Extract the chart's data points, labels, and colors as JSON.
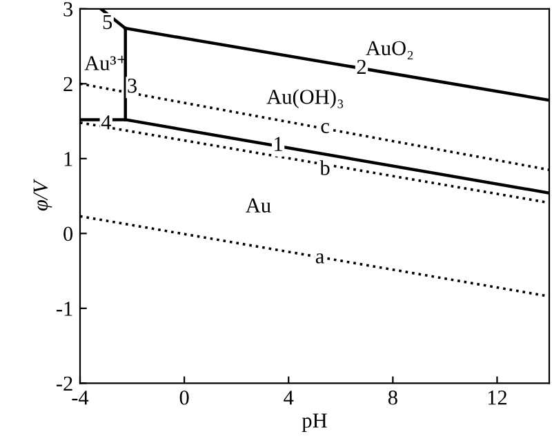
{
  "chart_data": {
    "type": "line",
    "xlabel": "pH",
    "ylabel": "φ/V",
    "xlim": [
      -4,
      14
    ],
    "ylim": [
      -2,
      3
    ],
    "xticks": [
      -4,
      0,
      4,
      8,
      12
    ],
    "yticks": [
      -2,
      -1,
      0,
      1,
      2,
      3
    ],
    "grid": false,
    "legend": false,
    "marker": "none",
    "series": [
      {
        "color": "#000000",
        "line_style": "solid",
        "x": [
          -2.26,
          14
        ],
        "values": [
          2.74,
          1.78
        ]
      },
      {
        "color": "#000000",
        "line_style": "solid",
        "x": [
          -4,
          -2.26,
          14
        ],
        "values": [
          1.52,
          1.52,
          0.54
        ]
      },
      {
        "color": "#000000",
        "line_style": "solid",
        "x": [
          -2.26,
          -2.26
        ],
        "values": [
          1.52,
          2.74
        ]
      },
      {
        "color": "#000000",
        "line_style": "solid",
        "x": [
          -3.2,
          -2.26
        ],
        "values": [
          3,
          2.74
        ]
      },
      {
        "color": "#000000",
        "line_style": "dotted",
        "x": [
          -4,
          14
        ],
        "values": [
          2.0,
          0.85
        ]
      },
      {
        "color": "#000000",
        "line_style": "dotted",
        "x": [
          -4,
          14
        ],
        "values": [
          1.48,
          0.41
        ]
      },
      {
        "color": "#000000",
        "line_style": "dotted",
        "x": [
          -4,
          14
        ],
        "values": [
          0.23,
          -0.84
        ]
      }
    ],
    "annotations": [
      "AuO₂",
      "Au(OH)₃",
      "Au³⁺",
      "Au",
      {
        "text": "1",
        "x": 3.6,
        "y": 1.17
      },
      {
        "text": "2",
        "x": 6.8,
        "y": 2.2
      },
      {
        "text": "3",
        "x": -2.0,
        "y": 1.95
      },
      {
        "text": "4",
        "x": -3.0,
        "y": 1.46
      },
      {
        "text": "5",
        "x": -2.95,
        "y": 2.8
      },
      {
        "text": "a",
        "x": 5.2,
        "y": -0.33
      },
      {
        "text": "b",
        "x": 5.4,
        "y": 0.85
      },
      {
        "text": "c",
        "x": 5.4,
        "y": 1.41
      }
    ]
  }
}
